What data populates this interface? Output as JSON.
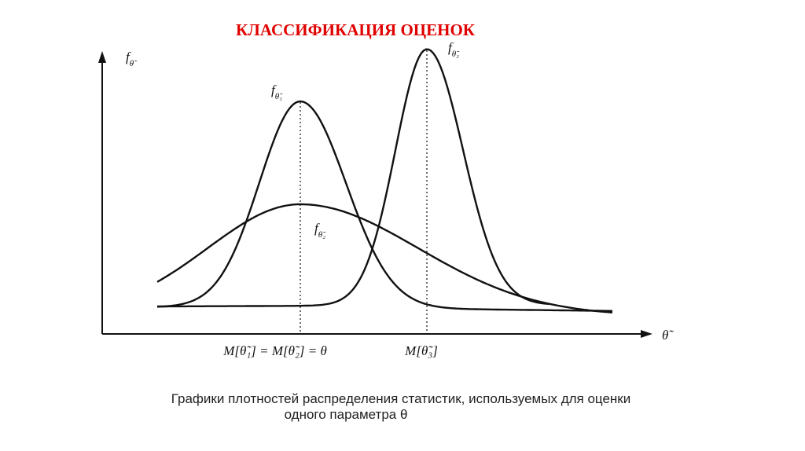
{
  "title": "КЛАССИФИКАЦИЯ ОЦЕНОК",
  "axes": {
    "y_label": "f",
    "y_label_sub": "θ̃",
    "x_label": "θ̃"
  },
  "curves": [
    {
      "label": "f",
      "sub": "θ̃₁"
    },
    {
      "label": "f",
      "sub": "θ̃₂"
    },
    {
      "label": "f",
      "sub": "θ̃₃"
    }
  ],
  "x_marks": [
    "M[θ̃₁] = M[θ̃₂] = θ",
    "M[θ̃₃]"
  ],
  "caption": [
    "Графики плотностей распределения статистик, используемых для оценки",
    "одного параметра θ"
  ]
}
